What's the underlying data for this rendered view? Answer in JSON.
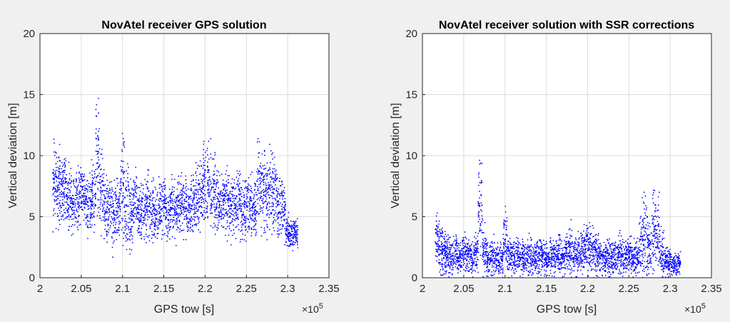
{
  "chart_data": [
    {
      "type": "scatter",
      "title": "NovAtel receiver GPS solution",
      "xlabel": "GPS tow [s]",
      "ylabel": "Vertical deviation [m]",
      "xlim": [
        2.0,
        2.35
      ],
      "ylim": [
        0,
        20
      ],
      "xticks": [
        "2",
        "2.05",
        "2.1",
        "2.15",
        "2.2",
        "2.25",
        "2.3",
        "2.35"
      ],
      "yticks": [
        "0",
        "5",
        "10",
        "15",
        "20"
      ],
      "x_multiplier": "10^5",
      "x_multiplier_base": "×10",
      "x_multiplier_exp": "5",
      "grid": true,
      "color": "#0000ff",
      "series": [
        {
          "x": [
            2.018,
            2.022,
            2.026,
            2.03,
            2.035,
            2.04,
            2.045,
            2.05,
            2.055,
            2.06,
            2.065,
            2.07,
            2.075,
            2.08,
            2.085,
            2.09,
            2.095,
            2.1,
            2.105,
            2.11,
            2.115,
            2.12,
            2.125,
            2.13,
            2.135,
            2.14,
            2.145,
            2.15,
            2.155,
            2.16,
            2.165,
            2.17,
            2.175,
            2.18,
            2.185,
            2.19,
            2.195,
            2.2,
            2.205,
            2.21,
            2.215,
            2.22,
            2.225,
            2.23,
            2.235,
            2.24,
            2.245,
            2.25,
            2.255,
            2.26,
            2.265,
            2.27,
            2.275,
            2.28,
            2.285,
            2.29,
            2.295,
            2.3,
            2.305,
            2.31
          ],
          "y": [
            8.0,
            7.2,
            6.8,
            7.5,
            6.5,
            6.0,
            6.4,
            7.0,
            6.2,
            5.8,
            6.5,
            9.5,
            7.0,
            5.5,
            6.0,
            5.2,
            5.8,
            7.5,
            6.0,
            5.0,
            6.5,
            5.2,
            5.6,
            6.0,
            5.4,
            5.0,
            5.6,
            6.0,
            5.2,
            5.8,
            5.5,
            6.2,
            6.0,
            5.6,
            6.0,
            6.2,
            6.8,
            7.4,
            7.8,
            7.0,
            6.5,
            6.0,
            6.2,
            5.8,
            6.0,
            6.4,
            5.5,
            5.8,
            6.0,
            5.6,
            7.5,
            7.0,
            6.5,
            7.2,
            6.8,
            6.0,
            5.5,
            3.8,
            3.5,
            3.6
          ],
          "spread": [
            3.5,
            3.0,
            3.2,
            2.8,
            2.6,
            2.5,
            2.8,
            2.6,
            2.5,
            2.4,
            2.8,
            5.0,
            3.2,
            2.5,
            2.6,
            3.0,
            2.8,
            4.0,
            3.5,
            3.0,
            2.8,
            2.5,
            2.6,
            2.8,
            2.6,
            2.4,
            2.5,
            2.6,
            2.4,
            2.5,
            2.4,
            2.6,
            2.5,
            2.4,
            2.6,
            2.8,
            3.2,
            3.6,
            3.8,
            3.2,
            2.8,
            2.6,
            2.7,
            2.6,
            2.6,
            2.8,
            2.5,
            2.6,
            2.8,
            2.6,
            3.6,
            3.4,
            3.0,
            3.4,
            3.2,
            3.0,
            2.6,
            1.4,
            1.2,
            1.2
          ]
        }
      ]
    },
    {
      "type": "scatter",
      "title": "NovAtel receiver solution with SSR corrections",
      "xlabel": "GPS tow [s]",
      "ylabel": "Vertical deviation [m]",
      "xlim": [
        2.0,
        2.35
      ],
      "ylim": [
        0,
        20
      ],
      "xticks": [
        "2",
        "2.05",
        "2.1",
        "2.15",
        "2.2",
        "2.25",
        "2.3",
        "2.35"
      ],
      "yticks": [
        "0",
        "5",
        "10",
        "15",
        "20"
      ],
      "x_multiplier": "10^5",
      "x_multiplier_base": "×10",
      "x_multiplier_exp": "5",
      "grid": true,
      "color": "#0000ff",
      "series": [
        {
          "x": [
            2.018,
            2.022,
            2.026,
            2.03,
            2.035,
            2.04,
            2.045,
            2.05,
            2.055,
            2.06,
            2.065,
            2.07,
            2.075,
            2.08,
            2.085,
            2.09,
            2.095,
            2.1,
            2.105,
            2.11,
            2.115,
            2.12,
            2.125,
            2.13,
            2.135,
            2.14,
            2.145,
            2.15,
            2.155,
            2.16,
            2.165,
            2.17,
            2.175,
            2.18,
            2.185,
            2.19,
            2.195,
            2.2,
            2.205,
            2.21,
            2.215,
            2.22,
            2.225,
            2.23,
            2.235,
            2.24,
            2.245,
            2.25,
            2.255,
            2.26,
            2.265,
            2.27,
            2.275,
            2.28,
            2.285,
            2.29,
            2.295,
            2.3,
            2.305,
            2.31
          ],
          "y": [
            3.0,
            2.5,
            2.2,
            2.0,
            1.8,
            2.0,
            1.6,
            2.2,
            1.8,
            1.5,
            2.0,
            5.5,
            2.2,
            1.6,
            1.8,
            1.5,
            1.6,
            3.0,
            2.0,
            1.6,
            1.8,
            1.5,
            1.6,
            1.8,
            1.5,
            1.6,
            1.8,
            1.5,
            1.6,
            1.8,
            2.0,
            1.8,
            2.0,
            2.2,
            1.8,
            2.0,
            2.4,
            2.6,
            2.4,
            2.0,
            1.8,
            1.6,
            1.8,
            1.6,
            1.7,
            2.0,
            1.6,
            1.8,
            1.6,
            1.5,
            3.0,
            3.5,
            2.5,
            4.0,
            3.5,
            2.0,
            1.5,
            1.2,
            1.0,
            1.2
          ],
          "spread": [
            2.2,
            2.0,
            1.8,
            1.8,
            1.6,
            1.6,
            1.5,
            1.8,
            1.6,
            1.4,
            1.6,
            4.5,
            2.0,
            1.5,
            1.6,
            1.4,
            1.5,
            2.8,
            1.8,
            1.5,
            1.6,
            1.4,
            1.5,
            1.6,
            1.4,
            1.5,
            1.6,
            1.4,
            1.5,
            1.6,
            1.8,
            1.6,
            1.8,
            2.0,
            1.6,
            1.8,
            2.0,
            2.2,
            2.0,
            1.8,
            1.6,
            1.5,
            1.6,
            1.5,
            1.5,
            1.8,
            1.5,
            1.6,
            1.5,
            1.4,
            3.0,
            3.5,
            2.5,
            3.5,
            3.0,
            2.0,
            1.4,
            1.1,
            1.0,
            1.1
          ]
        }
      ]
    }
  ]
}
